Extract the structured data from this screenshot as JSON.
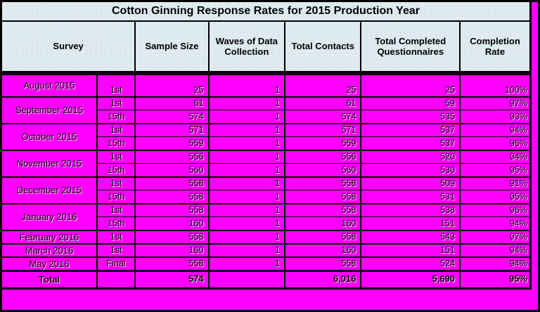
{
  "title": "Cotton Ginning Response Rates for 2015 Production Year",
  "columns": [
    "Survey",
    "Sample Size",
    "Waves of Data Collection",
    "Total Contacts",
    "Total Completed Questionnaires",
    "Completion Rate"
  ],
  "groups": [
    {
      "month": "August 2015",
      "rows": [
        {
          "wave": "1st",
          "sample": "25",
          "waves": "1",
          "contacts": "25",
          "completed": "25",
          "rate": "100%"
        }
      ]
    },
    {
      "month": "September 2015",
      "rows": [
        {
          "wave": "1st",
          "sample": "61",
          "waves": "1",
          "contacts": "61",
          "completed": "59",
          "rate": "97%"
        },
        {
          "wave": "15th",
          "sample": "574",
          "waves": "1",
          "contacts": "574",
          "completed": "535",
          "rate": "93%"
        }
      ]
    },
    {
      "month": "October 2015",
      "rows": [
        {
          "wave": "1st",
          "sample": "571",
          "waves": "1",
          "contacts": "571",
          "completed": "537",
          "rate": "94%"
        },
        {
          "wave": "15th",
          "sample": "559",
          "waves": "1",
          "contacts": "559",
          "completed": "537",
          "rate": "96%"
        }
      ]
    },
    {
      "month": "November 2015",
      "rows": [
        {
          "wave": "1st",
          "sample": "556",
          "waves": "1",
          "contacts": "556",
          "completed": "520",
          "rate": "94%"
        },
        {
          "wave": "15th",
          "sample": "560",
          "waves": "1",
          "contacts": "560",
          "completed": "530",
          "rate": "95%"
        }
      ]
    },
    {
      "month": "December 2015",
      "rows": [
        {
          "wave": "1st",
          "sample": "558",
          "waves": "1",
          "contacts": "558",
          "completed": "509",
          "rate": "91%"
        },
        {
          "wave": "15th",
          "sample": "558",
          "waves": "1",
          "contacts": "558",
          "completed": "531",
          "rate": "95%"
        }
      ]
    },
    {
      "month": "January 2016",
      "rows": [
        {
          "wave": "1st",
          "sample": "558",
          "waves": "1",
          "contacts": "558",
          "completed": "538",
          "rate": "96%"
        },
        {
          "wave": "15th",
          "sample": "160",
          "waves": "1",
          "contacts": "160",
          "completed": "151",
          "rate": "94%"
        }
      ]
    },
    {
      "month": "February 2016",
      "rows": [
        {
          "wave": "1st",
          "sample": "558",
          "waves": "1",
          "contacts": "558",
          "completed": "543",
          "rate": "97%"
        }
      ]
    },
    {
      "month": "March 2016",
      "rows": [
        {
          "wave": "1st",
          "sample": "160",
          "waves": "1",
          "contacts": "160",
          "completed": "151",
          "rate": "94%"
        }
      ]
    },
    {
      "month": "May 2016",
      "rows": [
        {
          "wave": "Final",
          "sample": "558",
          "waves": "1",
          "contacts": "558",
          "completed": "524",
          "rate": "94%"
        }
      ]
    }
  ],
  "total": {
    "label": "Total",
    "wave": "",
    "sample": "574",
    "waves": "",
    "contacts": "6,016",
    "completed": "5,690",
    "rate": "95%"
  },
  "colors": {
    "cell_magenta": "#FF00FF",
    "header_blue": "#DCE9EF",
    "border_black": "#000000"
  }
}
